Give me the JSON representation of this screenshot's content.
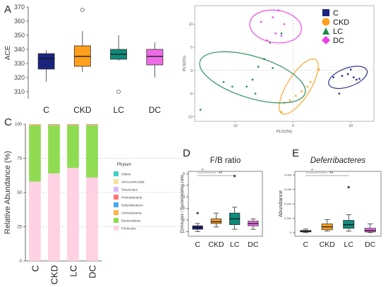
{
  "chart_data": [
    {
      "panel": "A",
      "type": "box",
      "ylabel": "ACE",
      "ylim": [
        305,
        370
      ],
      "yticks": [
        310,
        320,
        330,
        340,
        350,
        360,
        370
      ],
      "categories": [
        "C",
        "CKD",
        "LC",
        "DC"
      ],
      "boxes": [
        {
          "group": "C",
          "color": "#1a237e",
          "whisker_low": 317,
          "q1": 326,
          "median": 333.5,
          "q3": 337,
          "whisker_high": 339.5,
          "outliers": []
        },
        {
          "group": "CKD",
          "color": "#ff9f1c",
          "whisker_low": 324,
          "q1": 328,
          "median": 335,
          "q3": 342.5,
          "whisker_high": 353,
          "outliers": [
            368
          ]
        },
        {
          "group": "LC",
          "color": "#0e8a7a",
          "whisker_low": 332,
          "q1": 333,
          "median": 336.5,
          "q3": 340,
          "whisker_high": 350,
          "outliers": [
            310
          ]
        },
        {
          "group": "DC",
          "color": "#ee6be8",
          "whisker_low": 320,
          "q1": 329,
          "median": 335,
          "q3": 340,
          "whisker_high": 345,
          "outliers": []
        }
      ]
    },
    {
      "panel": "B",
      "type": "scatter",
      "xlabel": "PLS1(%)",
      "ylabel": "PLS2(%)",
      "xlim": [
        -17,
        14
      ],
      "ylim": [
        -11,
        14
      ],
      "xticks": [
        -10,
        0,
        10
      ],
      "yticks": [
        -10,
        -5,
        0,
        5,
        10
      ],
      "legend": [
        {
          "name": "C",
          "color": "#1a237e",
          "marker": "square"
        },
        {
          "name": "CKD",
          "color": "#ff9f1c",
          "marker": "circle"
        },
        {
          "name": "LC",
          "color": "#1b8a4a",
          "marker": "triangle"
        },
        {
          "name": "DC",
          "color": "#ee3ee6",
          "marker": "diamond"
        }
      ],
      "series": [
        {
          "name": "C",
          "color": "#1a237e",
          "ellipse": {
            "cx": 9.5,
            "cy": -1.5,
            "rx": 3.5,
            "ry": 2,
            "angle": -20
          },
          "points": [
            [
              8,
              -5
            ],
            [
              7,
              -1.5
            ],
            [
              8.5,
              -1.2
            ],
            [
              9.5,
              -0.8
            ],
            [
              10.5,
              -1.5
            ],
            [
              11,
              -2
            ],
            [
              10,
              0.2
            ],
            [
              11.5,
              -1.8
            ]
          ]
        },
        {
          "name": "CKD",
          "color": "#ff9f1c",
          "ellipse": {
            "cx": 1,
            "cy": -3.5,
            "rx": 5.5,
            "ry": 2.5,
            "angle": -58
          },
          "points": [
            [
              -2,
              -9
            ],
            [
              -0.5,
              -6.5
            ],
            [
              0.5,
              -5.5
            ],
            [
              1.5,
              -4.5
            ],
            [
              3,
              -2.5
            ],
            [
              4.5,
              0.2
            ],
            [
              -1.5,
              -7
            ],
            [
              2.5,
              -3.5
            ]
          ]
        },
        {
          "name": "LC",
          "color": "#1b8a4a",
          "ellipse": {
            "cx": -7,
            "cy": -1.5,
            "rx": 9.5,
            "ry": 4.5,
            "angle": 17
          },
          "points": [
            [
              -16,
              -8.5
            ],
            [
              -12,
              -2.5
            ],
            [
              -7,
              -2
            ],
            [
              -5,
              2.5
            ],
            [
              -4,
              6
            ],
            [
              -6,
              0.8
            ],
            [
              -3.5,
              0.5
            ],
            [
              -8,
              -3.5
            ],
            [
              -6.5,
              -5
            ],
            [
              -2,
              8
            ],
            [
              -10.5,
              -3.5
            ]
          ]
        },
        {
          "name": "DC",
          "color": "#ee3ee6",
          "ellipse": {
            "cx": -3,
            "cy": 9.5,
            "rx": 4.5,
            "ry": 3.5,
            "angle": 8
          },
          "points": [
            [
              -5.5,
              10.5
            ],
            [
              -4.5,
              6.5
            ],
            [
              -2.5,
              13
            ],
            [
              -3,
              8
            ],
            [
              -1.5,
              10
            ],
            [
              -2,
              7.5
            ],
            [
              -3.5,
              11.5
            ]
          ]
        }
      ]
    },
    {
      "panel": "C",
      "type": "stacked-bar",
      "ylabel": "Relative Abundance (%)",
      "ylim": [
        0,
        100
      ],
      "yticks": [
        0,
        25,
        50,
        75,
        100
      ],
      "categories": [
        "C",
        "CKD",
        "LC",
        "DC"
      ],
      "legend_title": "Phylum",
      "series": [
        {
          "name": "Firmicutes",
          "color": "#ffd1e3",
          "values": [
            58,
            64,
            68,
            61
          ]
        },
        {
          "name": "Bacteroidetes",
          "color": "#8fdc52",
          "values": [
            41,
            35,
            31,
            38
          ]
        },
        {
          "name": "Actinobacteria",
          "color": "#ffb347",
          "values": [
            0.6,
            0.5,
            0.5,
            0.5
          ]
        },
        {
          "name": "Deferribacteres",
          "color": "#4aa8f0",
          "values": [
            0.1,
            0.2,
            0.2,
            0.2
          ]
        },
        {
          "name": "Proteobacteria",
          "color": "#ff7777",
          "values": [
            0.2,
            0.2,
            0.2,
            0.2
          ]
        },
        {
          "name": "Tenericutes",
          "color": "#d9b8ff",
          "values": [
            0.05,
            0.05,
            0.05,
            0.05
          ]
        },
        {
          "name": "Verrucomicrobia",
          "color": "#f7e3a0",
          "values": [
            0.03,
            0.03,
            0.03,
            0.03
          ]
        },
        {
          "name": "Others",
          "color": "#3ed1c4",
          "values": [
            0.02,
            0.02,
            0.02,
            0.02
          ]
        }
      ]
    },
    {
      "panel": "D",
      "type": "box",
      "title": "F/B ratio",
      "ylabel": "Firmicutes / Bacteroidetes ratio",
      "ylim": [
        0.6,
        6.2
      ],
      "yticks": [
        1,
        2,
        3,
        4,
        5,
        6
      ],
      "categories": [
        "C",
        "CKD",
        "LC",
        "DC"
      ],
      "sig_brackets": [
        {
          "from": "C",
          "to": "CKD",
          "label": "*"
        },
        {
          "from": "C",
          "to": "LC",
          "label": "**"
        }
      ],
      "boxes": [
        {
          "group": "C",
          "color": "#1a237e",
          "whisker_low": 1.0,
          "q1": 1.2,
          "median": 1.35,
          "q3": 1.5,
          "whisker_high": 1.7,
          "outliers": [
            2.6
          ]
        },
        {
          "group": "CKD",
          "color": "#ff9f1c",
          "whisker_low": 1.4,
          "q1": 1.7,
          "median": 1.85,
          "q3": 2.1,
          "whisker_high": 2.6,
          "outliers": []
        },
        {
          "group": "LC",
          "color": "#0e8a7a",
          "whisker_low": 1.2,
          "q1": 1.6,
          "median": 2.1,
          "q3": 2.6,
          "whisker_high": 3.1,
          "outliers": [
            5.8
          ]
        },
        {
          "group": "DC",
          "color": "#ee6be8",
          "whisker_low": 1.2,
          "q1": 1.5,
          "median": 1.7,
          "q3": 1.9,
          "whisker_high": 2.1,
          "outliers": []
        }
      ]
    },
    {
      "panel": "E",
      "type": "box",
      "title": "Deferribacteres",
      "ylabel": "Abundance",
      "ylim": [
        -0.0005,
        0.0085
      ],
      "yticks": [
        0,
        0.002,
        0.004,
        0.006,
        0.008
      ],
      "categories": [
        "C",
        "CKD",
        "LC",
        "DC"
      ],
      "sig_brackets": [
        {
          "from": "C",
          "to": "CKD",
          "label": "*"
        },
        {
          "from": "C",
          "to": "LC",
          "label": "**"
        }
      ],
      "boxes": [
        {
          "group": "C",
          "color": "#1a237e",
          "whisker_low": 0.0,
          "q1": 0.0001,
          "median": 0.0002,
          "q3": 0.0003,
          "whisker_high": 0.0005,
          "outliers": []
        },
        {
          "group": "CKD",
          "color": "#ff9f1c",
          "whisker_low": 0.0002,
          "q1": 0.0004,
          "median": 0.0008,
          "q3": 0.0012,
          "whisker_high": 0.0018,
          "outliers": []
        },
        {
          "group": "LC",
          "color": "#0e8a7a",
          "whisker_low": 0.0002,
          "q1": 0.0006,
          "median": 0.0011,
          "q3": 0.0017,
          "whisker_high": 0.0025,
          "outliers": [
            0.0063
          ]
        },
        {
          "group": "DC",
          "color": "#ee6be8",
          "whisker_low": 0.0,
          "q1": 0.0001,
          "median": 0.0003,
          "q3": 0.0006,
          "whisker_high": 0.0012,
          "outliers": []
        }
      ]
    }
  ],
  "panel_labels": [
    "A",
    "B",
    "C",
    "D",
    "E"
  ]
}
